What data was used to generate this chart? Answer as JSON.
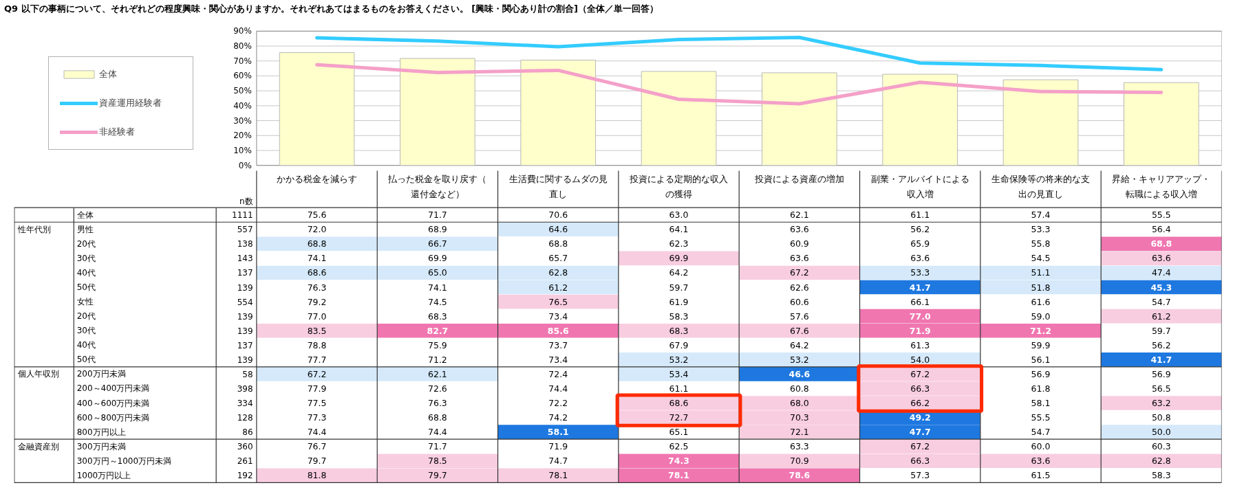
{
  "chart_data": [
    {
      "type": "bar",
      "title": "Q9 以下の事柄について、それぞれどの程度興味・関心がありますか。それぞれあてはまるものをお答えください。 [興味・関心あり計の割合]（全体／単一回答）",
      "categories": [
        "かかる税金を減らす",
        "払った税金を取り戻す（還付金など）",
        "生活費に関するムダの見直し",
        "投資による定期的な収入の獲得",
        "投資による資産の増加",
        "副業・アルバイトによる収入増",
        "生命保険等の将来的な支出の見直し",
        "昇給・キャリアアップ・転職による収入増"
      ],
      "series": [
        {
          "name": "全体",
          "type": "bar",
          "color": "#ffffcc",
          "values": [
            75.6,
            71.7,
            70.6,
            63.0,
            62.1,
            61.1,
            57.4,
            55.5
          ]
        },
        {
          "name": "資産運用経験者",
          "type": "line",
          "color": "#33ccff",
          "values": [
            85.5,
            83.3,
            79.5,
            84.4,
            85.8,
            68.6,
            67.0,
            64.2
          ]
        },
        {
          "name": "非経験者",
          "type": "line",
          "color": "#f4a0c8",
          "values": [
            67.5,
            62.3,
            63.7,
            44.3,
            41.3,
            55.7,
            49.5,
            48.9
          ]
        }
      ],
      "ylim": [
        0,
        90
      ],
      "yticks": [
        {
          "value": 0,
          "label": "0%"
        },
        {
          "value": 10,
          "label": "10%"
        },
        {
          "value": 20,
          "label": "20%"
        },
        {
          "value": 30,
          "label": "30%"
        },
        {
          "value": 40,
          "label": "40%"
        },
        {
          "value": 50,
          "label": "50%"
        },
        {
          "value": 60,
          "label": "60%"
        },
        {
          "value": 70,
          "label": "70%"
        },
        {
          "value": 80,
          "label": "80%"
        },
        {
          "value": 90,
          "label": "90%"
        }
      ],
      "grid": "y",
      "legend": "left",
      "tick_labels": "y"
    },
    {
      "type": "heatmap",
      "categories": [
        "かかる税金を減らす",
        "払った税金を取り戻す（還付金など）",
        "生活費に関するムダの見直し",
        "投資による定期的な収入の獲得",
        "投資による資産の増加",
        "副業・アルバイトによる収入増",
        "生命保険等の将来的な支出の見直し",
        "昇給・キャリアアップ・転職による収入増"
      ],
      "y_categories": [
        "全体",
        "男性",
        "20代",
        "30代",
        "40代",
        "50代",
        "女性",
        "20代",
        "30代",
        "40代",
        "50代",
        "200万円未満",
        "200～400万円未満",
        "400～600万円未満",
        "600～800万円未満",
        "800万円以上",
        "300万円未満",
        "300万円～1000万円未満",
        "1000万円以上"
      ],
      "y2_categories": [
        "1111",
        "557",
        "138",
        "143",
        "137",
        "139",
        "554",
        "139",
        "139",
        "137",
        "139",
        "58",
        "398",
        "334",
        "128",
        "86",
        "360",
        "261",
        "192"
      ],
      "cells": [
        [
          75.6,
          71.7,
          70.6,
          63.0,
          62.1,
          61.1,
          57.4,
          55.5
        ],
        [
          72.0,
          68.9,
          64.6,
          64.1,
          63.6,
          56.2,
          53.3,
          56.4
        ],
        [
          68.8,
          66.7,
          68.8,
          62.3,
          60.9,
          65.9,
          55.8,
          68.8
        ],
        [
          74.1,
          69.9,
          65.7,
          69.9,
          63.6,
          63.6,
          54.5,
          63.6
        ],
        [
          68.6,
          65.0,
          62.8,
          64.2,
          67.2,
          53.3,
          51.1,
          47.4
        ],
        [
          76.3,
          74.1,
          61.2,
          59.7,
          62.6,
          41.7,
          51.8,
          45.3
        ],
        [
          79.2,
          74.5,
          76.5,
          61.9,
          60.6,
          66.1,
          61.6,
          54.7
        ],
        [
          77.0,
          68.3,
          73.4,
          58.3,
          57.6,
          77.0,
          59.0,
          61.2
        ],
        [
          83.5,
          82.7,
          85.6,
          68.3,
          67.6,
          71.9,
          71.2,
          59.7
        ],
        [
          78.8,
          75.9,
          73.7,
          67.9,
          64.2,
          61.3,
          59.9,
          56.2
        ],
        [
          77.7,
          71.2,
          73.4,
          53.2,
          53.2,
          54.0,
          56.1,
          41.7
        ],
        [
          67.2,
          62.1,
          72.4,
          53.4,
          46.6,
          67.2,
          56.9,
          56.9
        ],
        [
          77.9,
          72.6,
          74.4,
          61.1,
          60.8,
          66.3,
          61.8,
          56.5
        ],
        [
          77.5,
          76.3,
          72.2,
          68.6,
          68.0,
          66.2,
          58.1,
          63.2
        ],
        [
          77.3,
          68.8,
          74.2,
          72.7,
          70.3,
          49.2,
          55.5,
          50.8
        ],
        [
          74.4,
          74.4,
          58.1,
          65.1,
          72.1,
          47.7,
          54.7,
          50.0
        ],
        [
          76.7,
          71.7,
          71.9,
          62.5,
          63.3,
          67.2,
          60.0,
          60.3
        ],
        [
          79.7,
          78.5,
          74.7,
          74.3,
          70.9,
          66.3,
          63.6,
          62.8
        ],
        [
          81.8,
          79.7,
          78.1,
          78.1,
          78.6,
          57.3,
          61.5,
          58.3
        ]
      ],
      "colors": [
        [
          "#ffffff",
          "#ffffff",
          "#ffffff",
          "#ffffff",
          "#ffffff",
          "#ffffff",
          "#ffffff",
          "#ffffff"
        ],
        [
          "#ffffff",
          "#ffffff",
          "#d5e9fa",
          "#ffffff",
          "#ffffff",
          "#ffffff",
          "#ffffff",
          "#ffffff"
        ],
        [
          "#d5e9fa",
          "#d5e9fa",
          "#ffffff",
          "#ffffff",
          "#ffffff",
          "#ffffff",
          "#ffffff",
          "#f076b0"
        ],
        [
          "#ffffff",
          "#ffffff",
          "#ffffff",
          "#f8cde0",
          "#ffffff",
          "#ffffff",
          "#ffffff",
          "#f8cde0"
        ],
        [
          "#d5e9fa",
          "#d5e9fa",
          "#d5e9fa",
          "#ffffff",
          "#f8cde0",
          "#d5e9fa",
          "#d5e9fa",
          "#d5e9fa"
        ],
        [
          "#ffffff",
          "#ffffff",
          "#d5e9fa",
          "#ffffff",
          "#ffffff",
          "#1e78e0",
          "#d5e9fa",
          "#1e78e0"
        ],
        [
          "#ffffff",
          "#ffffff",
          "#f8cde0",
          "#ffffff",
          "#ffffff",
          "#ffffff",
          "#ffffff",
          "#ffffff"
        ],
        [
          "#ffffff",
          "#ffffff",
          "#ffffff",
          "#ffffff",
          "#ffffff",
          "#f076b0",
          "#ffffff",
          "#f8cde0"
        ],
        [
          "#f8cde0",
          "#f076b0",
          "#f076b0",
          "#f8cde0",
          "#f8cde0",
          "#f076b0",
          "#f076b0",
          "#ffffff"
        ],
        [
          "#ffffff",
          "#ffffff",
          "#ffffff",
          "#ffffff",
          "#ffffff",
          "#ffffff",
          "#ffffff",
          "#ffffff"
        ],
        [
          "#ffffff",
          "#ffffff",
          "#ffffff",
          "#d5e9fa",
          "#d5e9fa",
          "#d5e9fa",
          "#ffffff",
          "#1e78e0"
        ],
        [
          "#d5e9fa",
          "#d5e9fa",
          "#ffffff",
          "#d5e9fa",
          "#1e78e0",
          "#f8cde0",
          "#ffffff",
          "#ffffff"
        ],
        [
          "#ffffff",
          "#ffffff",
          "#ffffff",
          "#ffffff",
          "#ffffff",
          "#f8cde0",
          "#ffffff",
          "#ffffff"
        ],
        [
          "#ffffff",
          "#ffffff",
          "#ffffff",
          "#f8cde0",
          "#f8cde0",
          "#f8cde0",
          "#ffffff",
          "#f8cde0"
        ],
        [
          "#ffffff",
          "#ffffff",
          "#ffffff",
          "#f8cde0",
          "#f8cde0",
          "#1e78e0",
          "#ffffff",
          "#ffffff"
        ],
        [
          "#ffffff",
          "#ffffff",
          "#1e78e0",
          "#ffffff",
          "#f8cde0",
          "#1e78e0",
          "#ffffff",
          "#d5e9fa"
        ],
        [
          "#ffffff",
          "#ffffff",
          "#ffffff",
          "#ffffff",
          "#ffffff",
          "#f8cde0",
          "#ffffff",
          "#ffffff"
        ],
        [
          "#ffffff",
          "#f8cde0",
          "#ffffff",
          "#f076b0",
          "#f8cde0",
          "#f8cde0",
          "#f8cde0",
          "#f8cde0"
        ],
        [
          "#f8cde0",
          "#f8cde0",
          "#f8cde0",
          "#f076b0",
          "#f076b0",
          "#ffffff",
          "#ffffff",
          "#ffffff"
        ]
      ],
      "cell_labels": [
        [
          "75.6",
          "71.7",
          "70.6",
          "63.0",
          "62.1",
          "61.1",
          "57.4",
          "55.5"
        ],
        [
          "72.0",
          "68.9",
          "64.6",
          "64.1",
          "63.6",
          "56.2",
          "53.3",
          "56.4"
        ],
        [
          "68.8",
          "66.7",
          "68.8",
          "62.3",
          "60.9",
          "65.9",
          "55.8",
          "68.8"
        ],
        [
          "74.1",
          "69.9",
          "65.7",
          "69.9",
          "63.6",
          "63.6",
          "54.5",
          "63.6"
        ],
        [
          "68.6",
          "65.0",
          "62.8",
          "64.2",
          "67.2",
          "53.3",
          "51.1",
          "47.4"
        ],
        [
          "76.3",
          "74.1",
          "61.2",
          "59.7",
          "62.6",
          "41.7",
          "51.8",
          "45.3"
        ],
        [
          "79.2",
          "74.5",
          "76.5",
          "61.9",
          "60.6",
          "66.1",
          "61.6",
          "54.7"
        ],
        [
          "77.0",
          "68.3",
          "73.4",
          "58.3",
          "57.6",
          "77.0",
          "59.0",
          "61.2"
        ],
        [
          "83.5",
          "82.7",
          "85.6",
          "68.3",
          "67.6",
          "71.9",
          "71.2",
          "59.7"
        ],
        [
          "78.8",
          "75.9",
          "73.7",
          "67.9",
          "64.2",
          "61.3",
          "59.9",
          "56.2"
        ],
        [
          "77.7",
          "71.2",
          "73.4",
          "53.2",
          "53.2",
          "54.0",
          "56.1",
          "41.7"
        ],
        [
          "67.2",
          "62.1",
          "72.4",
          "53.4",
          "46.6",
          "67.2",
          "56.9",
          "56.9"
        ],
        [
          "77.9",
          "72.6",
          "74.4",
          "61.1",
          "60.8",
          "66.3",
          "61.8",
          "56.5"
        ],
        [
          "77.5",
          "76.3",
          "72.2",
          "68.6",
          "68.0",
          "66.2",
          "58.1",
          "63.2"
        ],
        [
          "77.3",
          "68.8",
          "74.2",
          "72.7",
          "70.3",
          "49.2",
          "55.5",
          "50.8"
        ],
        [
          "74.4",
          "74.4",
          "58.1",
          "65.1",
          "72.1",
          "47.7",
          "54.7",
          "50.0"
        ],
        [
          "76.7",
          "71.7",
          "71.9",
          "62.5",
          "63.3",
          "67.2",
          "60.0",
          "60.3"
        ],
        [
          "79.7",
          "78.5",
          "74.7",
          "74.3",
          "70.9",
          "66.3",
          "63.6",
          "62.8"
        ],
        [
          "81.8",
          "79.7",
          "78.1",
          "78.1",
          "78.6",
          "57.3",
          "61.5",
          "58.3"
        ]
      ],
      "data_labels": true,
      "annotations": [
        "n数",
        "性年代別",
        "個人年収別",
        "金融資産別"
      ]
    }
  ]
}
